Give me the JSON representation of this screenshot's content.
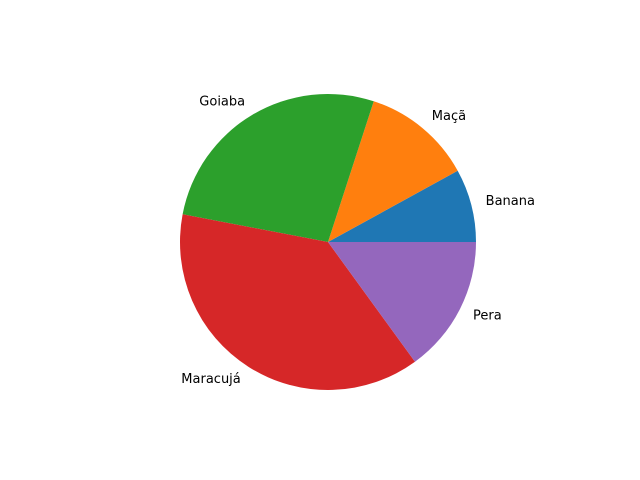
{
  "chart_data": {
    "type": "pie",
    "title": "",
    "categories": [
      "Banana",
      "Maçã",
      "Goiaba",
      "Maracujá",
      "Pera"
    ],
    "values": [
      8,
      12,
      27,
      38,
      15
    ],
    "colors": [
      "#1f77b4",
      "#ff7f0e",
      "#2ca02c",
      "#d62728",
      "#9467bd"
    ],
    "start_angle": 0,
    "direction": "counterclockwise",
    "legend": "none"
  }
}
